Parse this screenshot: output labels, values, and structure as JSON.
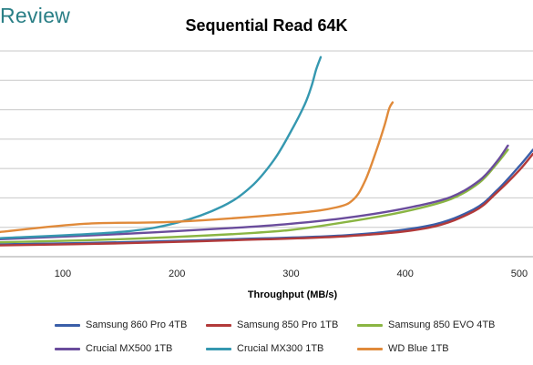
{
  "brand": {
    "text": "Review"
  },
  "chart_data": {
    "type": "line",
    "title": "Sequential Read 64K",
    "xlabel": "Throughput (MB/s)",
    "ylabel": "",
    "xlim": [
      45,
      512
    ],
    "ylim": [
      0,
      1.0
    ],
    "xticks": [
      100,
      200,
      300,
      400,
      500
    ],
    "grid": "horizontal",
    "legend_position": "bottom",
    "series": [
      {
        "name": "Samsung 860 Pro 4TB",
        "color": "#3a5ea8",
        "x": [
          45,
          150,
          250,
          350,
          420,
          460,
          480,
          500,
          512
        ],
        "y": [
          0.06,
          0.07,
          0.085,
          0.105,
          0.15,
          0.23,
          0.32,
          0.44,
          0.52
        ]
      },
      {
        "name": "Samsung 850 Pro 1TB",
        "color": "#b23a3a",
        "x": [
          45,
          150,
          250,
          350,
          420,
          460,
          480,
          500,
          512
        ],
        "y": [
          0.055,
          0.065,
          0.08,
          0.1,
          0.14,
          0.22,
          0.31,
          0.42,
          0.5
        ]
      },
      {
        "name": "Samsung 850 EVO 4TB",
        "color": "#8ab543",
        "x": [
          45,
          150,
          250,
          300,
          350,
          400,
          440,
          465,
          480,
          490
        ],
        "y": [
          0.07,
          0.085,
          0.11,
          0.13,
          0.17,
          0.22,
          0.28,
          0.36,
          0.45,
          0.52
        ]
      },
      {
        "name": "Crucial MX500 1TB",
        "color": "#6a4c9c",
        "x": [
          45,
          150,
          250,
          300,
          350,
          400,
          440,
          465,
          480,
          490
        ],
        "y": [
          0.085,
          0.11,
          0.14,
          0.16,
          0.19,
          0.235,
          0.29,
          0.37,
          0.46,
          0.54
        ]
      },
      {
        "name": "Crucial MX300 1TB",
        "color": "#3598b0",
        "x": [
          45,
          150,
          200,
          240,
          265,
          285,
          300,
          312,
          318,
          322,
          326
        ],
        "y": [
          0.09,
          0.12,
          0.165,
          0.245,
          0.34,
          0.47,
          0.61,
          0.74,
          0.83,
          0.91,
          0.97
        ]
      },
      {
        "name": "WD Blue 1TB",
        "color": "#e08a3a",
        "x": [
          45,
          120,
          200,
          300,
          340,
          355,
          365,
          375,
          382,
          386,
          389
        ],
        "y": [
          0.12,
          0.16,
          0.17,
          0.21,
          0.24,
          0.28,
          0.37,
          0.52,
          0.64,
          0.72,
          0.75
        ]
      }
    ]
  }
}
